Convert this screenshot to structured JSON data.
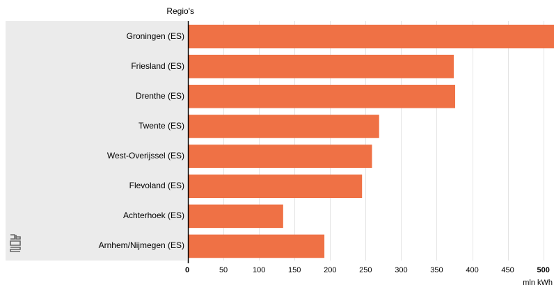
{
  "header": {
    "column_title": "Regio's"
  },
  "chart_data": {
    "type": "bar",
    "orientation": "horizontal",
    "categories": [
      "Groningen (ES)",
      "Friesland (ES)",
      "Drenthe (ES)",
      "Twente (ES)",
      "West-Overijssel (ES)",
      "Flevoland (ES)",
      "Achterhoek (ES)",
      "Arnhem/Nijmegen (ES)"
    ],
    "values": [
      515,
      373,
      375,
      268,
      258,
      244,
      133,
      191
    ],
    "xlim": [
      0,
      515
    ],
    "xticks": [
      0,
      50,
      100,
      150,
      200,
      250,
      300,
      350,
      400,
      450,
      500
    ],
    "xlabel": "mln kWh",
    "grid": true,
    "bar_color": "#ef7145"
  },
  "colors": {
    "bar": "#ef7145",
    "panel": "#ebebeb",
    "grid": "#e4e4e4",
    "axis": "#000000"
  },
  "icons": {
    "logo": "cbs-logo-icon"
  }
}
